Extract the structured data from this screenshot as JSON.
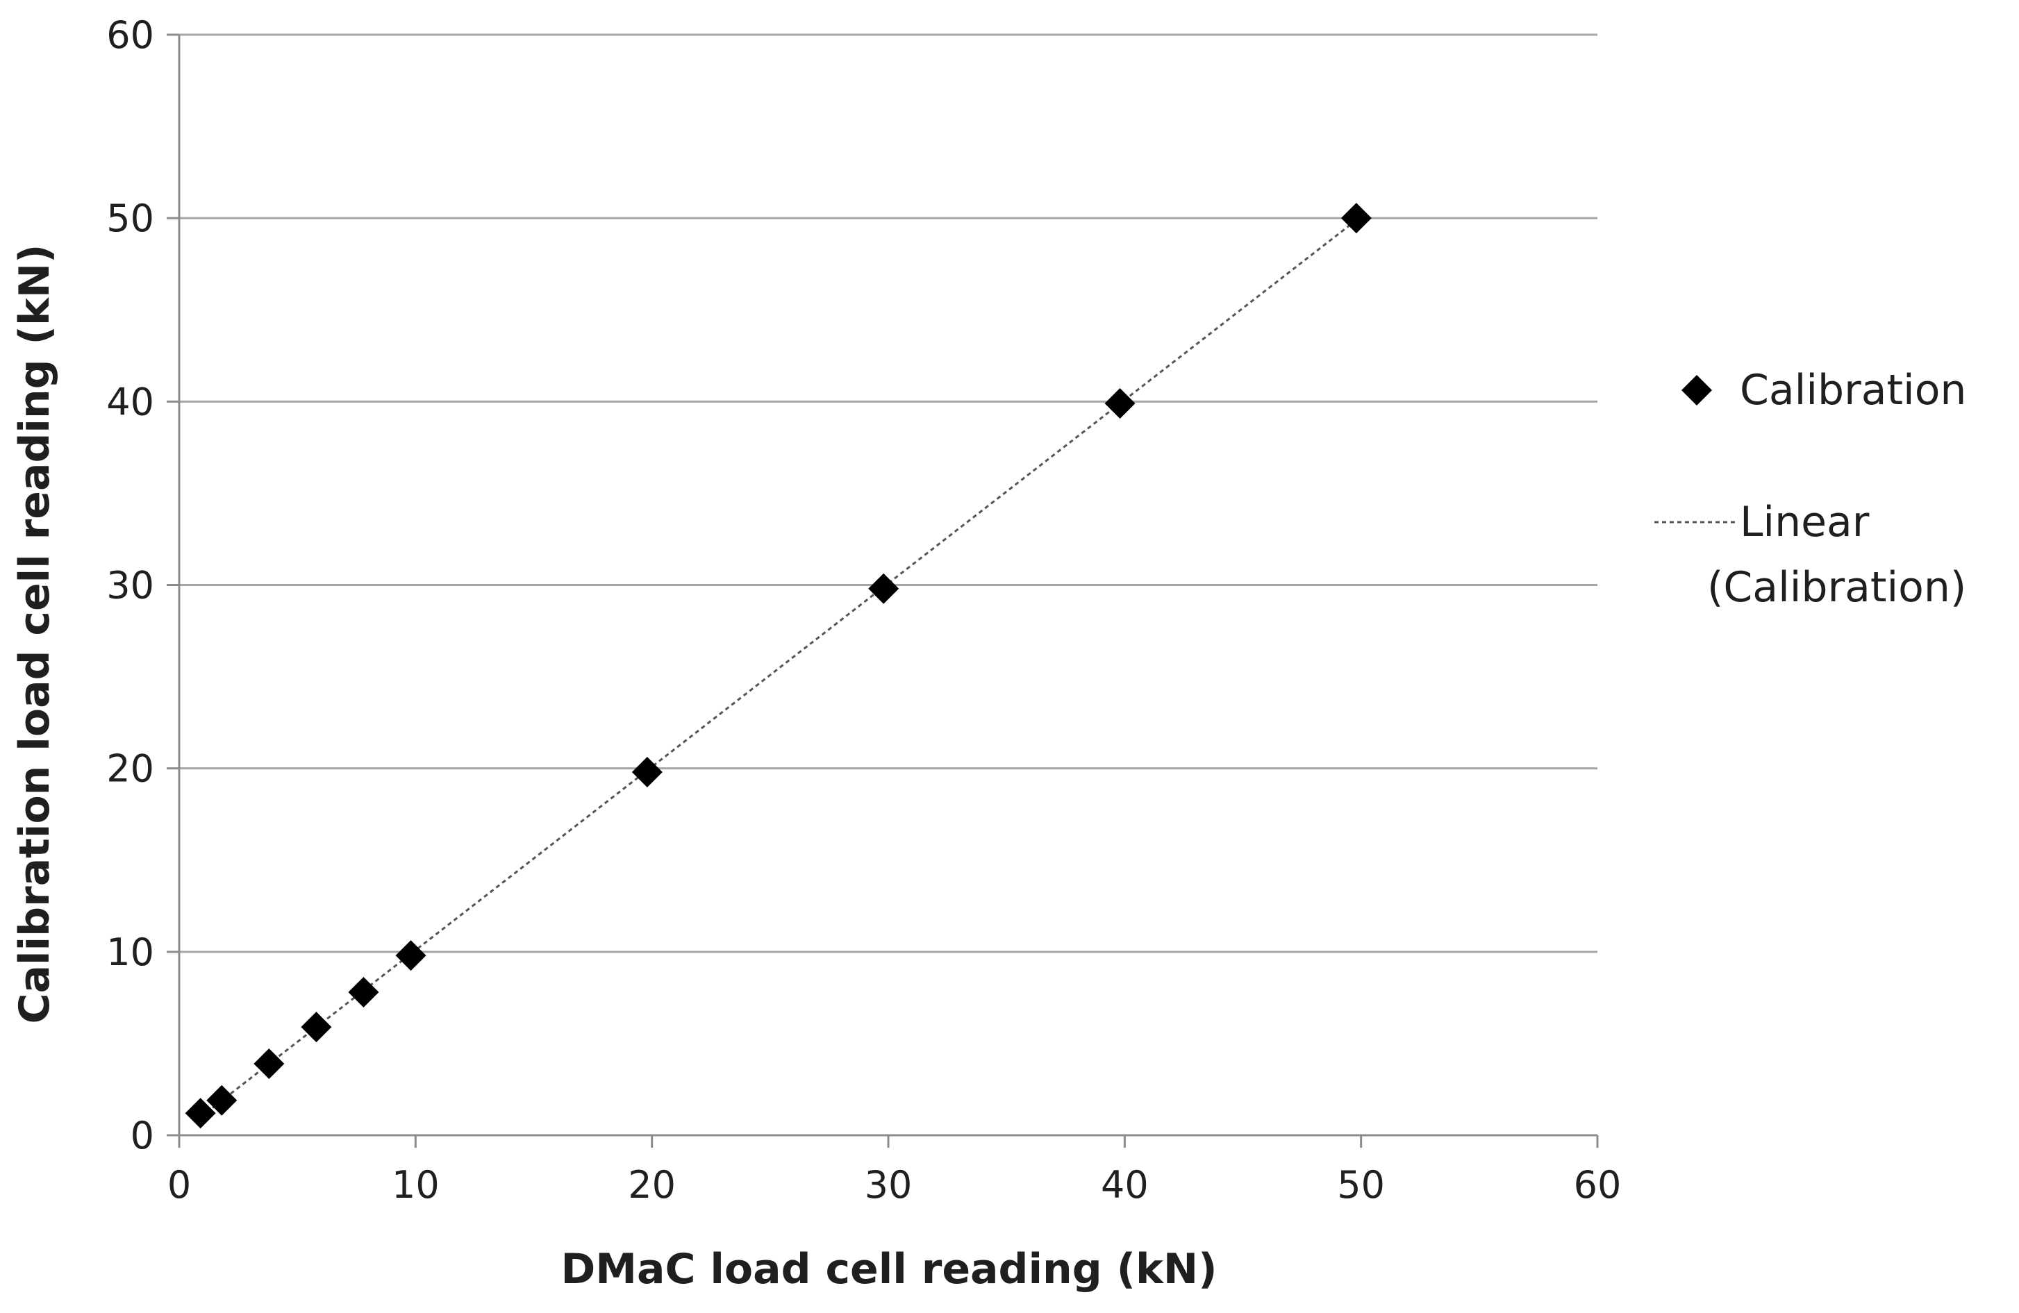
{
  "chart_data": {
    "type": "scatter",
    "title": "",
    "xlabel": "DMaC load cell reading (kN)",
    "ylabel": "Calibration load cell reading (kN)",
    "xlim": [
      0,
      60
    ],
    "ylim": [
      0,
      60
    ],
    "x_ticks": [
      0,
      10,
      20,
      30,
      40,
      50,
      60
    ],
    "y_ticks": [
      0,
      10,
      20,
      30,
      40,
      50,
      60
    ],
    "grid": "horizontal",
    "legend_position": "right",
    "series": [
      {
        "name": "Calibration",
        "marker": "diamond",
        "color": "#000000",
        "points": [
          {
            "x": 0.9,
            "y": 1.2
          },
          {
            "x": 1.8,
            "y": 1.9
          },
          {
            "x": 3.8,
            "y": 3.9
          },
          {
            "x": 5.8,
            "y": 5.9
          },
          {
            "x": 7.8,
            "y": 7.8
          },
          {
            "x": 9.8,
            "y": 9.8
          },
          {
            "x": 19.8,
            "y": 19.8
          },
          {
            "x": 29.8,
            "y": 29.8
          },
          {
            "x": 39.8,
            "y": 39.9
          },
          {
            "x": 49.8,
            "y": 50.0
          }
        ]
      },
      {
        "name": "Linear (Calibration)",
        "type": "trendline",
        "style": "dotted",
        "color": "#555555",
        "x_range": [
          0.9,
          49.8
        ]
      }
    ],
    "legend": {
      "items": [
        {
          "label": "Calibration",
          "symbol": "diamond"
        },
        {
          "label_lines": [
            "Linear",
            "(Calibration)"
          ],
          "symbol": "dotted-line"
        }
      ]
    }
  }
}
